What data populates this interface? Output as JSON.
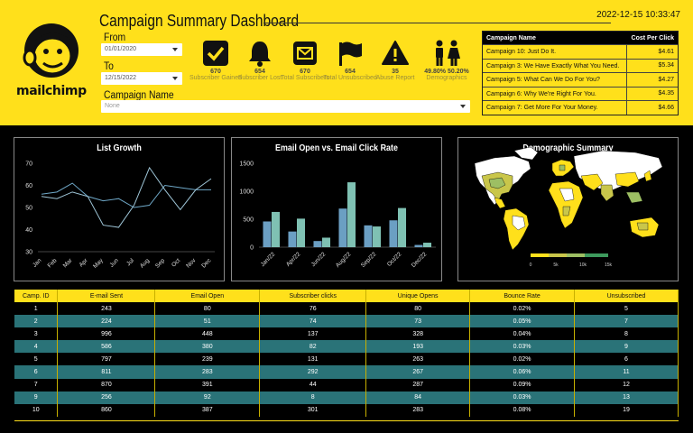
{
  "header": {
    "title": "Campaign Summary Dashboard",
    "timestamp": "2022-12-15 10:33:47",
    "logo_text": "mailchimp",
    "colors": {
      "brand_yellow": "#ffe01b",
      "teal": "#2a7378"
    }
  },
  "filters": {
    "from_label": "From",
    "from_value": "01/01/2020",
    "to_label": "To",
    "to_value": "12/15/2022",
    "campaign_label": "Campaign Name",
    "campaign_placeholder": "None"
  },
  "kpis": [
    {
      "icon": "checkmark-icon",
      "value": "670",
      "label": "Subscriber Gained"
    },
    {
      "icon": "bell-icon",
      "value": "654",
      "label": "Subscriber Lost"
    },
    {
      "icon": "envelope-icon",
      "value": "670",
      "label": "Total Subscribers"
    },
    {
      "icon": "flag-icon",
      "value": "654",
      "label": "Total Unsubscribed"
    },
    {
      "icon": "warning-icon",
      "value": "35",
      "label": "Abuse Report"
    },
    {
      "icon": "male-female-icon",
      "value": "49.80%  50.20%",
      "label": "Demographics"
    }
  ],
  "cost_table": {
    "headers": [
      "Campaign Name",
      "Cost Per Click"
    ],
    "rows": [
      [
        "Campaign 10: Just Do It.",
        "$4.61"
      ],
      [
        "Campaign 3: We Have Exactly What You Need.",
        "$5.34"
      ],
      [
        "Campaign 5: What Can We Do For You?",
        "$4.27"
      ],
      [
        "Campaign 6: Why We're Right For You.",
        "$4.35"
      ],
      [
        "Campaign 7: Get More For Your Money.",
        "$4.66"
      ]
    ]
  },
  "panels": {
    "list_growth_title": "List Growth",
    "email_title": "Email Open vs. Email Click Rate",
    "demo_title": "Demographic Summary",
    "demo_legend": [
      "0",
      "5k",
      "10k",
      "15k"
    ]
  },
  "chart_data": [
    {
      "type": "line",
      "title": "List Growth",
      "categories": [
        "Jan",
        "Feb",
        "Mar",
        "Apr",
        "May",
        "Jun",
        "Jul",
        "Aug",
        "Sep",
        "Oct",
        "Nov",
        "Dec"
      ],
      "series": [
        {
          "values": [
            56,
            57,
            61,
            55,
            53,
            54,
            50,
            51,
            60,
            59,
            58,
            58
          ]
        },
        {
          "values": [
            55,
            54,
            57,
            55,
            42,
            41,
            51,
            68,
            58,
            49,
            58,
            63
          ]
        }
      ],
      "ylim": [
        30,
        70
      ],
      "yticks": [
        30,
        40,
        50,
        60,
        70
      ],
      "colors": [
        "#6fa8c8",
        "#9fc6d8"
      ]
    },
    {
      "type": "bar",
      "title": "Email Open vs. Email Click Rate",
      "categories": [
        "Jan/22",
        "Apr/22",
        "Jun/22",
        "Aug/22",
        "Sep/22",
        "Oct/22",
        "Dec/22"
      ],
      "series": [
        {
          "values": [
            460,
            280,
            110,
            690,
            390,
            480,
            40
          ]
        },
        {
          "values": [
            630,
            510,
            170,
            1160,
            370,
            700,
            80
          ]
        }
      ],
      "ylim": [
        0,
        1500
      ],
      "yticks": [
        0,
        500,
        1000,
        1500
      ],
      "colors": [
        "#6b9fc3",
        "#7fc1b3"
      ]
    }
  ],
  "table": {
    "headers": [
      "Camp. ID",
      "E-mail Sent",
      "Email Open",
      "Subscriber clicks",
      "Unique Opens",
      "Bounce Rate",
      "Unsubscribed"
    ],
    "rows": [
      [
        "1",
        "243",
        "80",
        "76",
        "80",
        "0.02%",
        "5"
      ],
      [
        "2",
        "224",
        "51",
        "74",
        "73",
        "0.05%",
        "7"
      ],
      [
        "3",
        "996",
        "448",
        "137",
        "328",
        "0.04%",
        "8"
      ],
      [
        "4",
        "586",
        "380",
        "82",
        "193",
        "0.03%",
        "9"
      ],
      [
        "5",
        "797",
        "239",
        "131",
        "263",
        "0.02%",
        "6"
      ],
      [
        "6",
        "811",
        "283",
        "292",
        "267",
        "0.06%",
        "11"
      ],
      [
        "7",
        "870",
        "391",
        "44",
        "287",
        "0.09%",
        "12"
      ],
      [
        "9",
        "256",
        "92",
        "8",
        "84",
        "0.03%",
        "13"
      ],
      [
        "10",
        "860",
        "387",
        "301",
        "283",
        "0.08%",
        "19"
      ]
    ]
  }
}
